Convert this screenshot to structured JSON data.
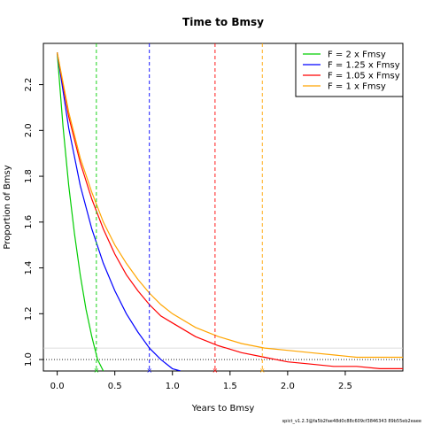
{
  "chart_data": {
    "type": "line",
    "title": "Time to Bmsy",
    "xlabel": "Years to Bmsy",
    "ylabel": "Proportion of Bmsy",
    "xlim": [
      -0.12,
      3.0
    ],
    "ylim": [
      0.95,
      2.38
    ],
    "x_ticks": [
      "0.0",
      "0.5",
      "1.0",
      "1.5",
      "2.0",
      "2.5"
    ],
    "y_ticks": [
      "1.0",
      "1.2",
      "1.4",
      "1.6",
      "1.8",
      "2.0",
      "2.2"
    ],
    "grid": false,
    "legend_position": "top-right",
    "start_value": 2.34,
    "reference_lines": {
      "bmsy": 1.0,
      "band": 1.05
    },
    "series": [
      {
        "name": "F = 2 x Fmsy",
        "color": "#00CD00",
        "years_to_bmsy": 0.34,
        "x": [
          0.0,
          0.05,
          0.1,
          0.15,
          0.2,
          0.25,
          0.3,
          0.35,
          0.4
        ],
        "y": [
          2.34,
          2.02,
          1.76,
          1.55,
          1.37,
          1.22,
          1.1,
          1.0,
          0.95
        ]
      },
      {
        "name": "F = 1.25 x Fmsy",
        "color": "#0000FF",
        "years_to_bmsy": 0.8,
        "x": [
          0.0,
          0.1,
          0.2,
          0.3,
          0.4,
          0.5,
          0.6,
          0.7,
          0.8,
          0.9,
          1.0,
          1.07
        ],
        "y": [
          2.34,
          2.01,
          1.76,
          1.57,
          1.42,
          1.3,
          1.2,
          1.12,
          1.05,
          1.0,
          0.96,
          0.95
        ]
      },
      {
        "name": "F = 1.05 x Fmsy",
        "color": "#FF0000",
        "years_to_bmsy": 1.37,
        "x": [
          0.0,
          0.1,
          0.2,
          0.3,
          0.4,
          0.5,
          0.6,
          0.7,
          0.8,
          0.9,
          1.0,
          1.2,
          1.4,
          1.6,
          1.8,
          2.0,
          2.2,
          2.4,
          2.6,
          2.8,
          3.0
        ],
        "y": [
          2.34,
          2.06,
          1.86,
          1.7,
          1.57,
          1.46,
          1.37,
          1.3,
          1.24,
          1.19,
          1.16,
          1.1,
          1.06,
          1.03,
          1.01,
          0.99,
          0.98,
          0.97,
          0.97,
          0.96,
          0.96
        ]
      },
      {
        "name": "F = 1 x Fmsy",
        "color": "#FFA500",
        "years_to_bmsy": 1.78,
        "x": [
          0.0,
          0.1,
          0.2,
          0.3,
          0.4,
          0.5,
          0.6,
          0.7,
          0.8,
          0.9,
          1.0,
          1.2,
          1.4,
          1.6,
          1.8,
          2.0,
          2.2,
          2.4,
          2.6,
          2.8,
          3.0
        ],
        "y": [
          2.34,
          2.08,
          1.88,
          1.73,
          1.6,
          1.5,
          1.42,
          1.35,
          1.29,
          1.24,
          1.2,
          1.14,
          1.1,
          1.07,
          1.05,
          1.04,
          1.03,
          1.02,
          1.01,
          1.01,
          1.01
        ]
      }
    ]
  },
  "footer": "spict_v1.2.3@fa5b2fae48d0c88c609cf3846343 89b55eb2eaee"
}
